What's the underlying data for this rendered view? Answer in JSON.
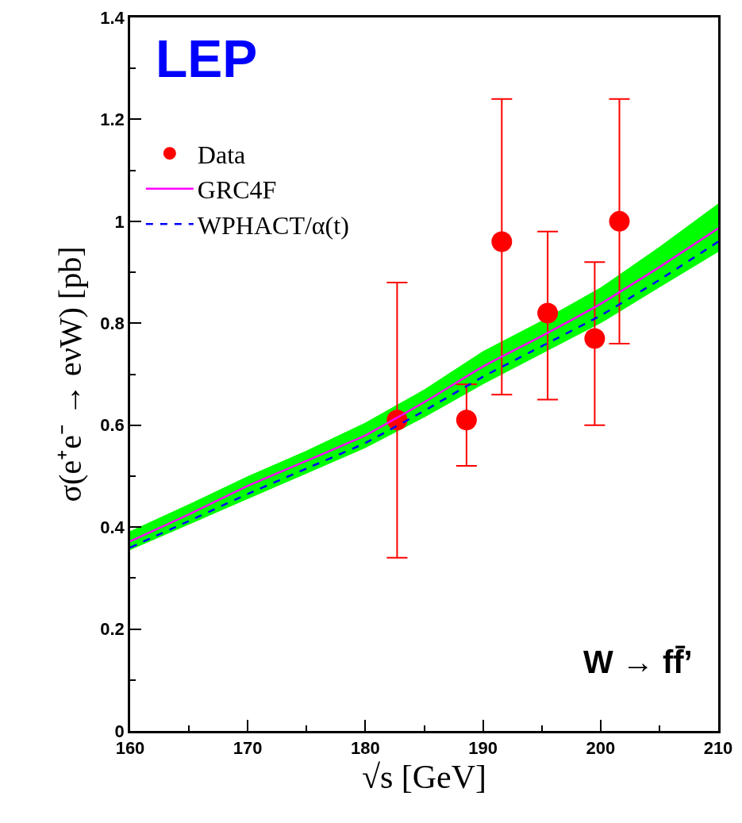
{
  "chart_data": {
    "type": "scatter",
    "xlabel": "√s [GeV]",
    "ylabel": "σ(e⁺e⁻ → eνW) [pb]",
    "xlim": [
      160,
      210
    ],
    "xticks": [
      160,
      170,
      180,
      190,
      200,
      210
    ],
    "ylim": [
      0,
      1.4
    ],
    "yticks": [
      0,
      0.2,
      0.4,
      0.6,
      0.8,
      1,
      1.2,
      1.4
    ],
    "grid": false,
    "legend": "top left",
    "annotations": [
      "LEP",
      "W → ff̄’"
    ],
    "series": [
      {
        "name": "Data",
        "type": "scatter",
        "marker": "circle",
        "color": "#ff0000",
        "x": [
          182.7,
          188.6,
          191.6,
          195.5,
          199.5,
          201.6
        ],
        "values": [
          0.61,
          0.61,
          0.96,
          0.82,
          0.77,
          1.0
        ],
        "errors": [
          [
            0.34,
            0.88
          ],
          [
            0.52,
            0.68
          ],
          [
            0.66,
            1.24
          ],
          [
            0.65,
            0.98
          ],
          [
            0.6,
            0.92
          ],
          [
            0.76,
            1.24
          ]
        ]
      },
      {
        "name": "GRC4F",
        "type": "line",
        "marker": "none",
        "line_style": "solid",
        "color": "#ff00ff",
        "x": [
          160,
          165,
          170,
          175,
          180,
          185,
          190,
          195,
          200,
          205,
          210
        ],
        "values": [
          0.372,
          0.425,
          0.481,
          0.53,
          0.58,
          0.645,
          0.715,
          0.775,
          0.838,
          0.91,
          0.986
        ],
        "lower": [
          0.355,
          0.405,
          0.455,
          0.505,
          0.555,
          0.615,
          0.68,
          0.74,
          0.8,
          0.87,
          0.94
        ],
        "upper": [
          0.392,
          0.445,
          0.5,
          0.55,
          0.605,
          0.67,
          0.745,
          0.805,
          0.87,
          0.95,
          1.035
        ]
      },
      {
        "name": "WPHACT/α(t)",
        "type": "line",
        "marker": "none",
        "line_style": "dashed",
        "color": "#0000ff",
        "x": [
          160,
          165,
          170,
          175,
          180,
          185,
          190,
          195,
          200,
          205,
          210
        ],
        "values": [
          0.36,
          0.412,
          0.465,
          0.515,
          0.565,
          0.628,
          0.695,
          0.755,
          0.815,
          0.885,
          0.96
        ]
      }
    ]
  }
}
